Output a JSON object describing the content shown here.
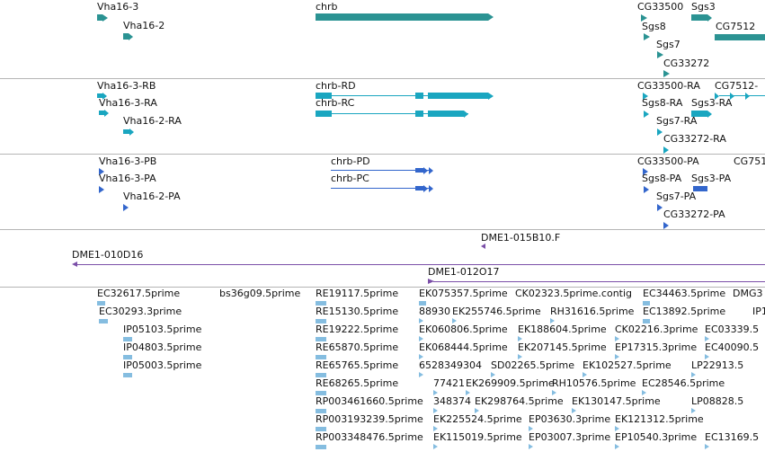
{
  "colors": {
    "gene": "#2b9393",
    "transcript": "#1aa6c0",
    "protein": "#3366cc",
    "clone": "#7b4fa8",
    "est": "#85bde0",
    "separator": "#b5b5b5"
  },
  "genes": {
    "vha16_3": "Vha16-3",
    "vha16_2": "Vha16-2",
    "chrb": "chrb",
    "cg33500": "CG33500",
    "sgs3": "Sgs3",
    "sgs8": "Sgs8",
    "cg7512": "CG7512",
    "sgs7": "Sgs7",
    "cg33272": "CG33272"
  },
  "transcripts": {
    "vha16_3_rb": "Vha16-3-RB",
    "vha16_3_ra": "Vha16-3-RA",
    "vha16_2_ra": "Vha16-2-RA",
    "chrb_rd": "chrb-RD",
    "chrb_rc": "chrb-RC",
    "cg33500_ra": "CG33500-RA",
    "cg7512_trunc": "CG7512-",
    "sgs8_ra": "Sgs8-RA",
    "sgs3_ra": "Sgs3-RA",
    "sgs7_ra": "Sgs7-RA",
    "cg33272_ra": "CG33272-RA"
  },
  "proteins": {
    "vha16_3_pb": "Vha16-3-PB",
    "vha16_3_pa": "Vha16-3-PA",
    "vha16_2_pa": "Vha16-2-PA",
    "chrb_pd": "chrb-PD",
    "chrb_pc": "chrb-PC",
    "cg33500_pa": "CG33500-PA",
    "cg751_trunc": "CG751",
    "sgs8_pa": "Sgs8-PA",
    "sgs3_pa": "Sgs3-PA",
    "sgs7_pa": "Sgs7-PA",
    "cg33272_pa": "CG33272-PA"
  },
  "clones": {
    "dme1_015b10": "DME1-015B10.F",
    "dme1_010d16": "DME1-010D16",
    "dme1_012o17": "DME1-012O17"
  },
  "ests": [
    "EC32617.5prime",
    "bs36g09.5prime",
    "RE19117.5prime",
    "EK075357.5prime",
    "CK02323.5prime.contig",
    "EC34463.5prime",
    "DMG3",
    "EC30293.3prime",
    "RE15130.5prime",
    "88930",
    "EK255746.5prime",
    "RH31616.5prime",
    "EC13892.5prime",
    "IP1",
    "IP05103.5prime",
    "RE19222.5prime",
    "EK060806.5prime",
    "EK188604.5prime",
    "CK02216.3prime",
    "EC03339.5",
    "IP04803.5prime",
    "RE65870.5prime",
    "EK068444.5prime",
    "EK207145.5prime",
    "EP17315.3prime",
    "EC40090.5",
    "IP05003.5prime",
    "RE65765.5prime",
    "6528349304",
    "SD02265.5prime",
    "EK102527.5prime",
    "LP22913.5",
    "RE68265.5prime",
    "77421",
    "EK269909.5prime",
    "RH10576.5prime",
    "EC28546.5prime",
    "RP003461660.5prime",
    "348374",
    "EK298764.5prime",
    "EK130147.5prime",
    "LP08828.5",
    "RP003193239.5prime",
    "EK225524.5prime",
    "EP03630.3prime",
    "EK121312.5prime",
    "RP003348476.5prime",
    "EK115019.5prime",
    "EP03007.3prime",
    "EP10540.3prime",
    "EC13169.5"
  ]
}
